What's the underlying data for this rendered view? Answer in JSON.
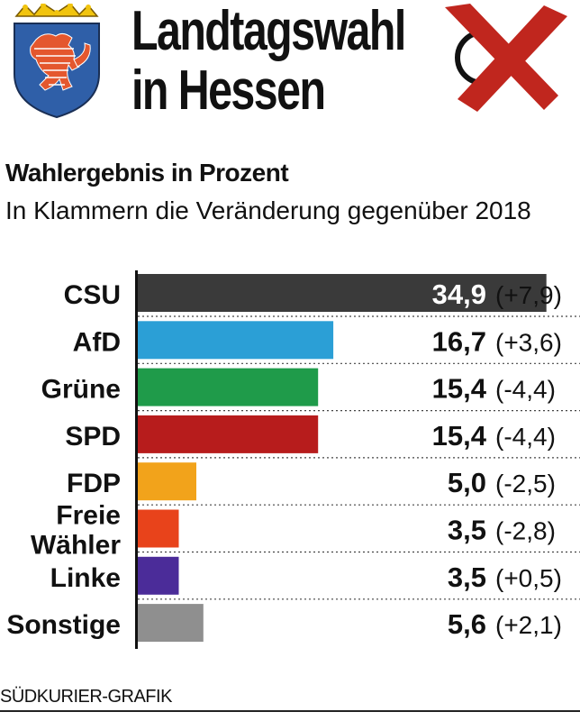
{
  "header": {
    "title_line1": "Landtagswahl",
    "title_line2": "in Hessen"
  },
  "icons": {
    "coat_of_arms": "hessen-coat-of-arms-icon",
    "ballot_mark": "ballot-cross-icon"
  },
  "subtitle": "Wahlergebnis in Prozent",
  "subnote": "In Klammern die Veränderung gegenüber 2018",
  "credit": "SÜDKURIER-GRAFIK",
  "colors": {
    "CSU": "#3a3a3a",
    "AfD": "#2b9fd6",
    "Grüne": "#1f9b4a",
    "SPD": "#b71c1c",
    "FDP": "#f2a31b",
    "Freie Wähler": "#e8431b",
    "Linke": "#4b2c99",
    "Sonstige": "#8f8f8f",
    "ballot_cross": "#c0261e"
  },
  "chart_data": {
    "type": "bar",
    "orientation": "horizontal",
    "categories": [
      "CSU",
      "AfD",
      "Grüne",
      "SPD",
      "FDP",
      "Freie\nWähler",
      "Linke",
      "Sonstige"
    ],
    "values": [
      34.9,
      16.7,
      15.4,
      15.4,
      5.0,
      3.5,
      3.5,
      5.6
    ],
    "value_labels": [
      "34,9",
      "16,7",
      "15,4",
      "15,4",
      "5,0",
      "3,5",
      "3,5",
      "5,6"
    ],
    "change_labels": [
      "(+7,9)",
      "(+3,6)",
      "(-4,4)",
      "(-4,4)",
      "(-2,5)",
      "(-2,8)",
      "(+0,5)",
      "(+2,1)"
    ],
    "changes": [
      7.9,
      3.6,
      -4.4,
      -4.4,
      -2.5,
      -2.8,
      0.5,
      2.1
    ],
    "xlim": [
      0,
      35
    ],
    "unit": "Prozent",
    "grid": false,
    "legend": "none"
  }
}
